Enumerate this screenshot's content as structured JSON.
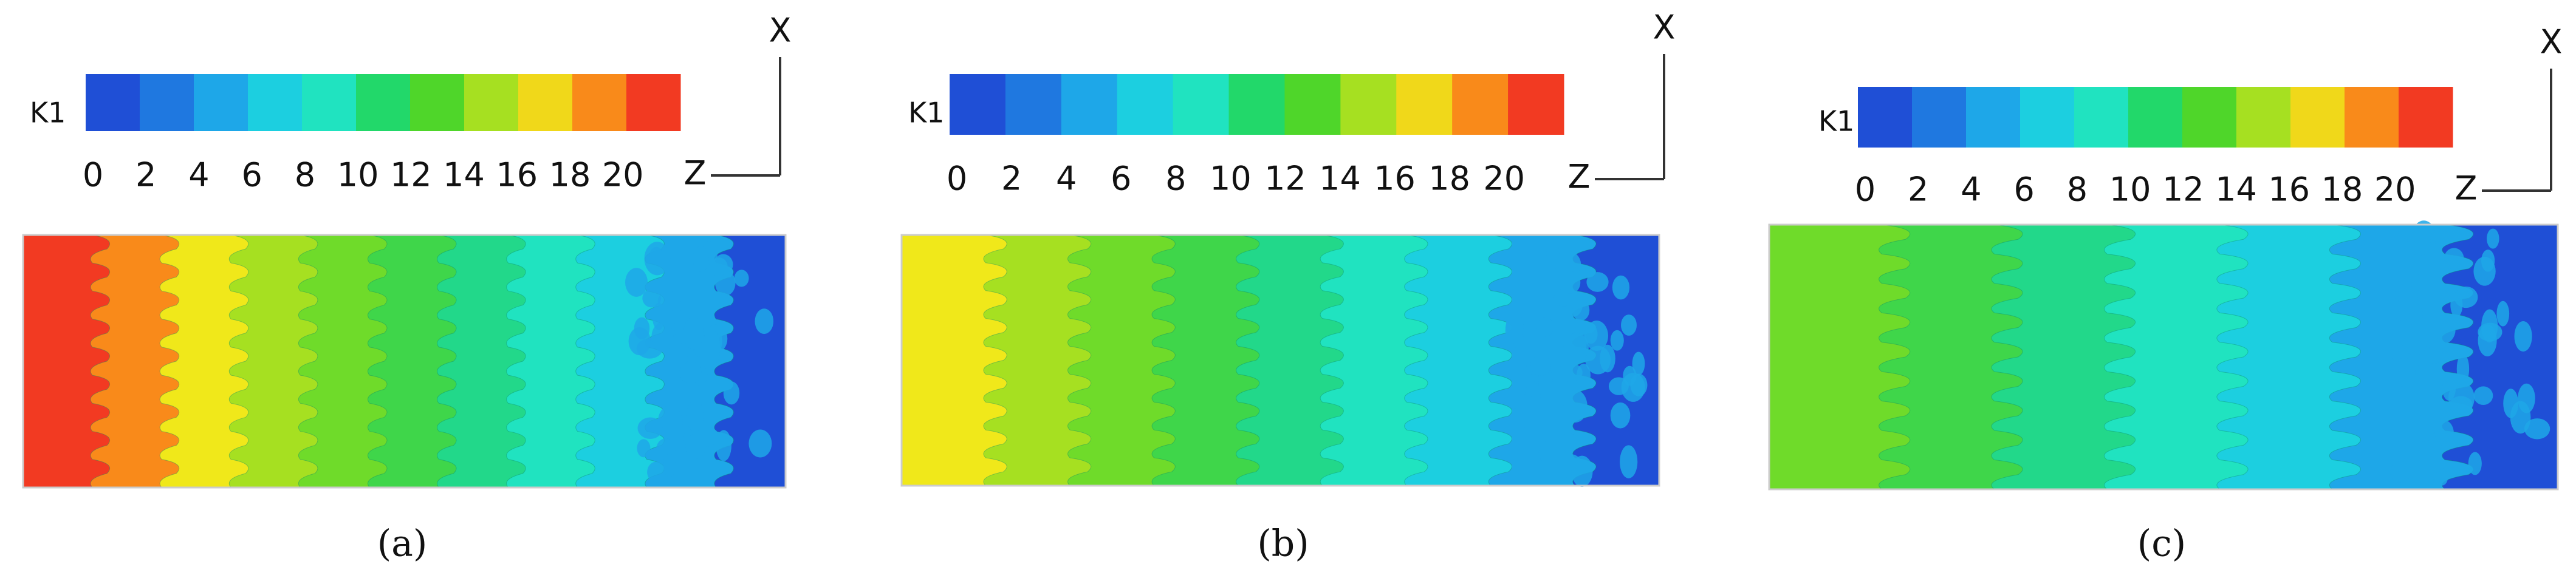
{
  "colorbar": {
    "colors": [
      "#1f4fd6",
      "#1f78e0",
      "#1ea7e8",
      "#1ccfe0",
      "#20e3c0",
      "#22d86a",
      "#4fd62a",
      "#a6e021",
      "#f0d81a",
      "#f98a1a",
      "#f23a22"
    ]
  },
  "panels": [
    {
      "caption": "(a)",
      "label": "K1",
      "ticks": [
        0,
        2,
        4,
        6,
        8,
        10,
        12,
        14,
        16,
        18,
        20
      ],
      "x_axis": "X",
      "z_axis": "Z",
      "contour_colors": [
        "#f23a22",
        "#f98a1a",
        "#f0e81a",
        "#a6e021",
        "#6fdb2a",
        "#3fd64a",
        "#22d88a",
        "#20e3c0",
        "#1ccfe0",
        "#1ea7e8",
        "#1f4fd6"
      ]
    },
    {
      "caption": "(b)",
      "label": "K1",
      "ticks": [
        0,
        2,
        4,
        6,
        8,
        10,
        12,
        14,
        16,
        18,
        20
      ],
      "x_axis": "X",
      "z_axis": "Z",
      "contour_colors": [
        "#f0e81a",
        "#a6e021",
        "#6fdb2a",
        "#3fd64a",
        "#22d88a",
        "#20e3c0",
        "#1ccfe0",
        "#1ea7e8",
        "#1f4fd6"
      ]
    },
    {
      "caption": "(c)",
      "label": "K1",
      "ticks": [
        0,
        2,
        4,
        6,
        8,
        10,
        12,
        14,
        16,
        18,
        20
      ],
      "x_axis": "X",
      "z_axis": "Z",
      "contour_colors": [
        "#6fdb2a",
        "#3fd64a",
        "#22d88a",
        "#20e3c0",
        "#1ccfe0",
        "#1ea7e8",
        "#1f4fd6"
      ]
    }
  ]
}
